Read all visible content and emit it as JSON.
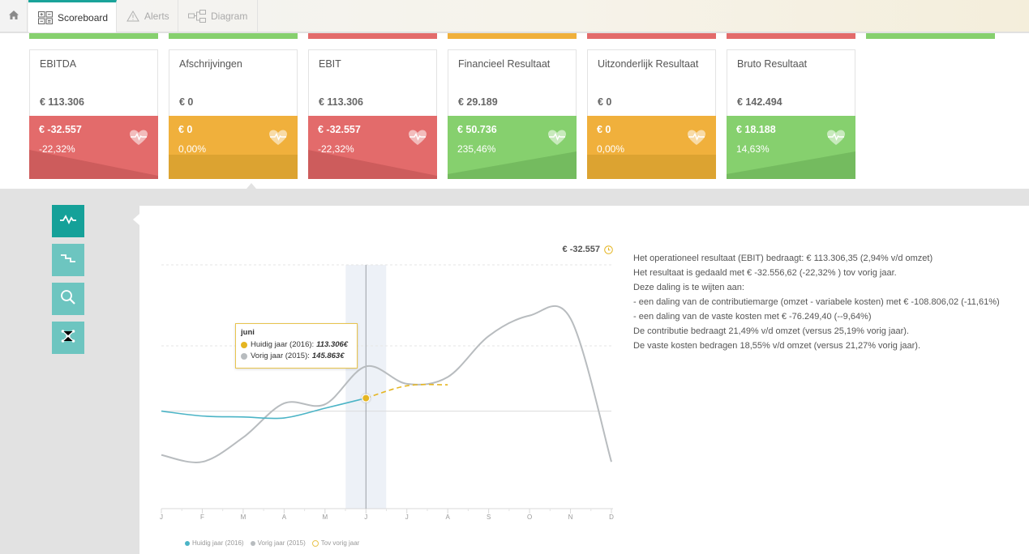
{
  "nav": {
    "home_icon": "home-icon",
    "tabs": [
      {
        "label": "Scoreboard",
        "icon": "scoreboard-icon",
        "active": true
      },
      {
        "label": "Alerts",
        "icon": "warning-icon",
        "active": false
      },
      {
        "label": "Diagram",
        "icon": "diagram-icon",
        "active": false
      }
    ]
  },
  "colors": {
    "red": "#e36b6b",
    "red_dark": "#cd5c5c",
    "orange": "#f0b03c",
    "orange_dark": "#dca331",
    "green": "#86d06e",
    "green_dark": "#74bb5f",
    "teal": "#15a199",
    "teal_light": "#6dc5c0",
    "series_current": "#4bb4c6",
    "series_previous": "#b8bcbf",
    "series_vs": "#e5b521"
  },
  "scoreboard": {
    "top_strips": [
      "green",
      "green",
      "red",
      "orange",
      "red",
      "red",
      "green"
    ],
    "cards": [
      {
        "title": "EBITDA",
        "value": "€ 113.306",
        "delta": "€ -32.557",
        "pct": "-22,32%",
        "status": "red",
        "icon": "heart-pulse-icon"
      },
      {
        "title": "Afschrijvingen",
        "value": "€ 0",
        "delta": "€ 0",
        "pct": "0,00%",
        "status": "orange",
        "icon": "heart-pulse-icon"
      },
      {
        "title": "EBIT",
        "value": "€ 113.306",
        "delta": "€ -32.557",
        "pct": "-22,32%",
        "status": "red",
        "icon": "heart-pulse-icon"
      },
      {
        "title": "Financieel Resultaat",
        "value": "€ 29.189",
        "delta": "€ 50.736",
        "pct": "235,46%",
        "status": "green",
        "icon": "heart-pulse-icon"
      },
      {
        "title": "Uitzonderlijk Resultaat",
        "value": "€ 0",
        "delta": "€ 0",
        "pct": "0,00%",
        "status": "orange",
        "icon": "heart-pulse-icon"
      },
      {
        "title": "Bruto Resultaat",
        "value": "€ 142.494",
        "delta": "€ 18.188",
        "pct": "14,63%",
        "status": "green",
        "icon": "heart-pulse-icon"
      }
    ]
  },
  "tools": [
    {
      "icon": "line-chart-icon",
      "active": true
    },
    {
      "icon": "step-chart-icon",
      "active": false
    },
    {
      "icon": "zoom-icon",
      "active": false
    },
    {
      "icon": "network-icon",
      "active": false
    }
  ],
  "chart": {
    "latest_label": "€ -32.557",
    "latest_icon": "clock-icon",
    "tooltip": {
      "title": "juni",
      "rows": [
        {
          "label": "Huidig jaar (2016):",
          "value": "113.306€",
          "color": "#e5b521"
        },
        {
          "label": "Vorig jaar (2015):",
          "value": "145.863€",
          "color": "#b8bcbf"
        }
      ]
    },
    "legend": [
      "Huidig jaar (2016)",
      "Vorig jaar (2015)",
      "Tov vorig jaar"
    ]
  },
  "chart_data": {
    "type": "line",
    "x": [
      "J",
      "F",
      "M",
      "A",
      "M",
      "J",
      "J",
      "A",
      "S",
      "O",
      "N",
      "D"
    ],
    "highlight": "J",
    "series": [
      {
        "name": "Huidig jaar (2016)",
        "values": [
          100,
          95,
          94,
          93,
          103,
          113.306,
          null,
          null,
          null,
          null,
          null,
          null
        ]
      },
      {
        "name": "Vorig jaar (2015)",
        "values": [
          55,
          48,
          73,
          108,
          107,
          145.863,
          128,
          135,
          177,
          198,
          195,
          48
        ]
      },
      {
        "name": "Tov vorig jaar",
        "values": [
          null,
          null,
          null,
          null,
          null,
          113.306,
          126,
          127,
          null,
          null,
          null,
          null
        ]
      }
    ]
  },
  "description": [
    "Het operationeel resultaat (EBIT) bedraagt: € 113.306,35 (2,94% v/d omzet)",
    "Het resultaat is gedaald met € -32.556,62 (-22,32% ) tov vorig jaar.",
    "Deze daling is te wijten aan:",
    "- een daling van de contributiemarge (omzet - variabele kosten) met € -108.806,02 (-11,61%)",
    "- een daling van de vaste kosten met € -76.249,40 (--9,64%)",
    "De contributie bedraagt 21,49% v/d omzet (versus 25,19% vorig jaar).",
    "De vaste kosten bedragen 18,55% v/d omzet (versus 21,27% vorig jaar)."
  ]
}
